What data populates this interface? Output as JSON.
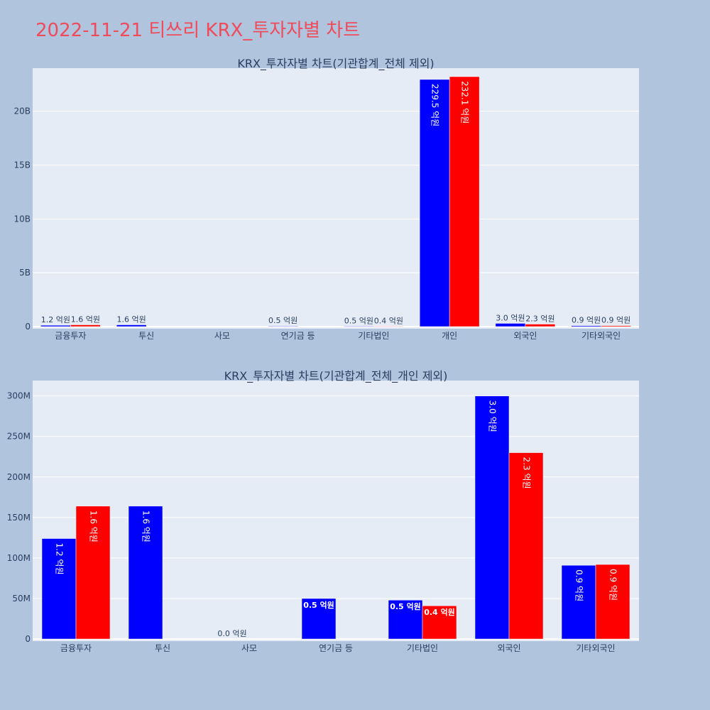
{
  "page": {
    "title": "2022-11-21 티쓰리 KRX_투자자별 차트"
  },
  "colors": {
    "background": "#b0c4de",
    "plot_bg": "#e5ecf6",
    "series_a": "#0000ff",
    "series_b": "#ff0000",
    "title": "#ef4b5a",
    "text": "#2a3f5f"
  },
  "chart_data": [
    {
      "type": "bar",
      "title": "KRX_투자자별 차트(기관합계_전체 제외)",
      "categories": [
        "금융투자",
        "투신",
        "사모",
        "연기금 등",
        "기타법인",
        "개인",
        "외국인",
        "기타외국인"
      ],
      "series": [
        {
          "values": [
            124000000,
            164000000,
            null,
            50000000,
            48000000,
            22950000000,
            300000000,
            91000000
          ],
          "labels": [
            "1.2 억원",
            "1.6 억원",
            "",
            "0.5 억원",
            "0.5 억원",
            "229.5 억원",
            "3.0 억원",
            "0.9 억원"
          ]
        },
        {
          "values": [
            164000000,
            null,
            null,
            null,
            41000000,
            23210000000,
            230000000,
            92000000
          ],
          "labels": [
            "1.6 억원",
            "",
            "",
            "",
            "0.4 억원",
            "232.1 억원",
            "2.3 억원",
            "0.9 억원"
          ]
        }
      ],
      "yticks": [
        "0",
        "5B",
        "10B",
        "15B",
        "20B"
      ],
      "ytick_values": [
        0,
        5000000000,
        10000000000,
        15000000000,
        20000000000
      ],
      "ylim": [
        0,
        24000000000
      ],
      "grid": true
    },
    {
      "type": "bar",
      "title": "KRX_투자자별 차트(기관합계_전체_개인 제외)",
      "categories": [
        "금융투자",
        "투신",
        "사모",
        "연기금 등",
        "기타법인",
        "외국인",
        "기타외국인"
      ],
      "series": [
        {
          "values": [
            124000000,
            164000000,
            0,
            50000000,
            48000000,
            300000000,
            91000000
          ],
          "labels": [
            "1.2 억원",
            "1.6 억원",
            "0.0 억원",
            "0.5 억원",
            "0.5 억원",
            "3.0 억원",
            "0.9 억원"
          ]
        },
        {
          "values": [
            164000000,
            null,
            null,
            null,
            41000000,
            230000000,
            92000000
          ],
          "labels": [
            "1.6 억원",
            "",
            "",
            "",
            "0.4 억원",
            "2.3 억원",
            "0.9 억원"
          ]
        }
      ],
      "yticks": [
        "0",
        "50M",
        "100M",
        "150M",
        "200M",
        "250M",
        "300M"
      ],
      "ytick_values": [
        0,
        50000000,
        100000000,
        150000000,
        200000000,
        250000000,
        300000000
      ],
      "ylim": [
        0,
        319000000
      ],
      "grid": true
    }
  ]
}
